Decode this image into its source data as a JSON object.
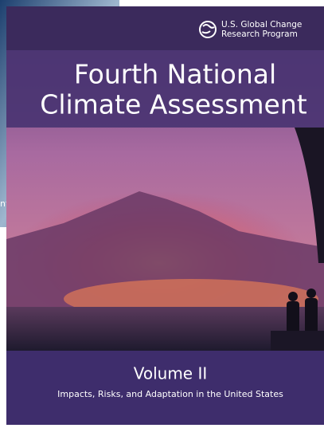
{
  "logo": {
    "line1": "U.S. Global Change",
    "line2": "Research Program"
  },
  "title": {
    "line1": "Fourth National",
    "line2": "Climate Assessment"
  },
  "volume": "Volume II",
  "subtitle": "Impacts, Risks, and Adaptation in the United States",
  "back_cover_fragment": "nt"
}
